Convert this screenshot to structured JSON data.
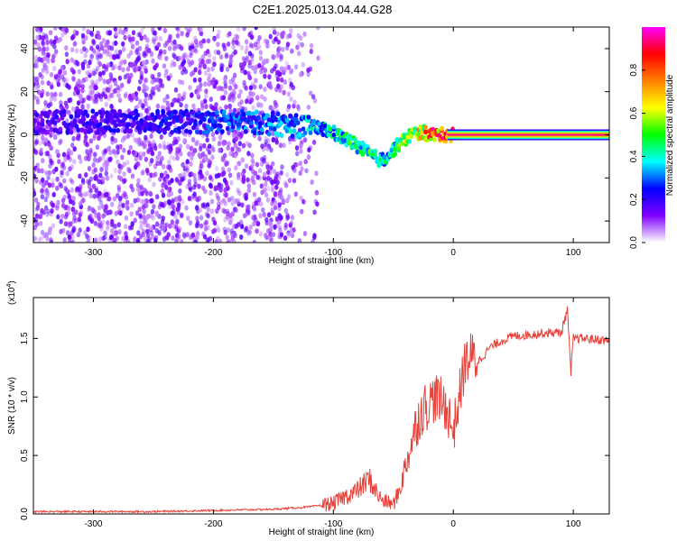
{
  "figure_title": "C2E1.2025.013.04.44.G28",
  "chart_data": [
    {
      "type": "heatmap",
      "title": "",
      "xlabel": "Height of straight line (km)",
      "ylabel": "Frequency (Hz)",
      "xlim": [
        -350,
        130
      ],
      "ylim": [
        -50,
        50
      ],
      "xticks": [
        -300,
        -200,
        -100,
        0,
        100
      ],
      "xtick_labels": [
        "-300",
        "-200",
        "-100",
        "0",
        "100"
      ],
      "yticks": [
        -40,
        -20,
        0,
        20,
        40
      ],
      "ytick_labels": [
        "-40",
        "-20",
        "0",
        "20",
        "40"
      ],
      "colorbar": {
        "label": "Normalized spectral amplitude",
        "range": [
          0,
          1
        ],
        "ticks": [
          0.0,
          0.2,
          0.4,
          0.6,
          0.8
        ],
        "tick_labels": [
          "0.0",
          "0.2",
          "0.4",
          "0.6",
          "0.8"
        ],
        "colors": [
          "#ffffff",
          "#8000ff",
          "#0000ff",
          "#00ffff",
          "#00ff00",
          "#ffff00",
          "#ff8000",
          "#ff0000",
          "#ff00ff"
        ]
      },
      "ridge": {
        "x": [
          -350,
          -300,
          -250,
          -220,
          -200,
          -170,
          -150,
          -130,
          -110,
          -100,
          -90,
          -80,
          -70,
          -60,
          -55,
          -50,
          -45,
          -40,
          -35,
          -30,
          -25,
          -20,
          -10,
          0,
          20,
          50,
          90,
          95,
          100,
          130
        ],
        "y": [
          6,
          6,
          6,
          6,
          6,
          6,
          5,
          4,
          3,
          1,
          -2,
          -5,
          -9,
          -12,
          -10,
          -7,
          -4,
          -2,
          0,
          1,
          1,
          0,
          0,
          0,
          0,
          0,
          0,
          0,
          0,
          0
        ],
        "amplitude": [
          0.18,
          0.2,
          0.22,
          0.25,
          0.28,
          0.3,
          0.33,
          0.35,
          0.38,
          0.4,
          0.45,
          0.48,
          0.5,
          0.45,
          0.4,
          0.42,
          0.5,
          0.55,
          0.6,
          0.65,
          0.7,
          0.8,
          0.85,
          0.9,
          0.95,
          0.95,
          0.95,
          0.95,
          0.95,
          0.95
        ]
      }
    },
    {
      "type": "line",
      "title": "",
      "xlabel": "Height of straight line (km)",
      "ylabel": "SNR (10 * v/v)",
      "y_multiplier": "(x10",
      "y_exponent": "4",
      "xlim": [
        -350,
        130
      ],
      "ylim": [
        0,
        1.85
      ],
      "xticks": [
        -300,
        -200,
        -100,
        0,
        100
      ],
      "xtick_labels": [
        "-300",
        "-200",
        "-100",
        "0",
        "100"
      ],
      "yticks": [
        0.0,
        0.5,
        1.0,
        1.5
      ],
      "ytick_labels": [
        "0.0",
        "0.5",
        "1.0",
        "1.5"
      ],
      "color": "#e8413a",
      "x": [
        -350,
        -300,
        -250,
        -200,
        -150,
        -120,
        -100,
        -90,
        -80,
        -75,
        -70,
        -65,
        -60,
        -55,
        -50,
        -45,
        -40,
        -35,
        -30,
        -25,
        -20,
        -15,
        -10,
        -5,
        0,
        5,
        10,
        15,
        20,
        25,
        30,
        40,
        50,
        60,
        70,
        80,
        90,
        95,
        98,
        100,
        110,
        120,
        130
      ],
      "y": [
        0.02,
        0.02,
        0.02,
        0.03,
        0.04,
        0.06,
        0.09,
        0.15,
        0.2,
        0.25,
        0.3,
        0.2,
        0.12,
        0.1,
        0.08,
        0.2,
        0.4,
        0.6,
        0.8,
        0.9,
        0.95,
        1.0,
        0.95,
        0.9,
        0.7,
        1.0,
        1.3,
        1.35,
        1.3,
        1.35,
        1.42,
        1.48,
        1.52,
        1.53,
        1.54,
        1.55,
        1.55,
        1.75,
        1.2,
        1.5,
        1.5,
        1.49,
        1.48
      ]
    }
  ]
}
